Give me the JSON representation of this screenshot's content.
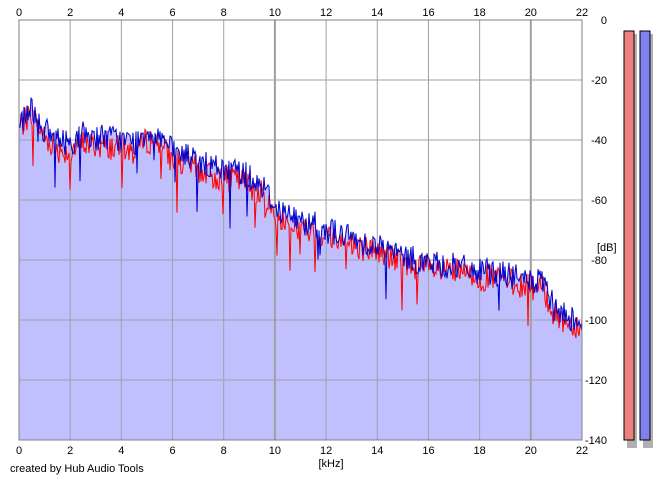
{
  "footer": {
    "credit": "created by Hub Audio Tools"
  },
  "chart_data": {
    "type": "area",
    "xlabel": "[kHz]",
    "ylabel": "[dB]",
    "xlim": [
      0,
      22
    ],
    "ylim": [
      -140,
      0
    ],
    "x_ticks": [
      "0",
      "2",
      "4",
      "6",
      "8",
      "10",
      "12",
      "14",
      "16",
      "18",
      "20",
      "22"
    ],
    "y_ticks": [
      "0",
      "-20",
      "-40",
      "-60",
      "-80",
      "-100",
      "-120",
      "-140"
    ],
    "grid": true,
    "colors": {
      "fill": "#c0c0ff",
      "grid": "#a0a0a0",
      "left_channel": "#ff0000",
      "right_channel": "#0000cc"
    },
    "envelope_x": [
      0,
      0.5,
      1,
      1.5,
      2,
      2.5,
      3,
      3.5,
      4,
      4.5,
      5,
      5.5,
      6,
      6.5,
      7,
      7.5,
      8,
      8.5,
      9,
      9.5,
      10,
      10.5,
      11,
      11.5,
      12,
      12.5,
      13,
      13.5,
      14,
      14.5,
      15,
      15.5,
      16,
      16.5,
      17,
      17.5,
      18,
      18.5,
      19,
      19.5,
      20,
      20.5,
      20.8,
      21,
      21.5,
      22
    ],
    "envelope_y": [
      -34,
      -29,
      -37,
      -40,
      -41,
      -38,
      -39,
      -39,
      -40,
      -41,
      -37,
      -38,
      -44,
      -45,
      -47,
      -49,
      -50,
      -50,
      -52,
      -55,
      -62,
      -65,
      -67,
      -68,
      -70,
      -71,
      -73,
      -74,
      -75,
      -77,
      -79,
      -80,
      -81,
      -82,
      -82,
      -83,
      -84,
      -84,
      -85,
      -86,
      -87,
      -88,
      -94,
      -97,
      -99,
      -100
    ],
    "series": [
      {
        "values": [
          -36,
          -31,
          -39,
          -43,
          -44,
          -41,
          -42,
          -42,
          -43,
          -44,
          -40,
          -41,
          -47,
          -48,
          -50,
          -52,
          -53,
          -53,
          -55,
          -58,
          -65,
          -68,
          -70,
          -71,
          -72,
          -73,
          -75,
          -76,
          -77,
          -79,
          -81,
          -82,
          -83,
          -84,
          -84,
          -85,
          -86,
          -86,
          -87,
          -88,
          -89,
          -90,
          -96,
          -99,
          -101,
          -102
        ]
      },
      {
        "values": [
          -34,
          -29,
          -37,
          -40,
          -41,
          -38,
          -39,
          -39,
          -40,
          -41,
          -37,
          -38,
          -44,
          -45,
          -47,
          -49,
          -50,
          -50,
          -52,
          -55,
          -62,
          -65,
          -67,
          -68,
          -70,
          -71,
          -73,
          -74,
          -75,
          -77,
          -79,
          -80,
          -81,
          -82,
          -82,
          -83,
          -84,
          -84,
          -85,
          -86,
          -87,
          -88,
          -94,
          -97,
          -99,
          -100
        ]
      }
    ],
    "level_meters": [
      {
        "color": "#f08080"
      },
      {
        "color": "#8080f0"
      }
    ]
  }
}
